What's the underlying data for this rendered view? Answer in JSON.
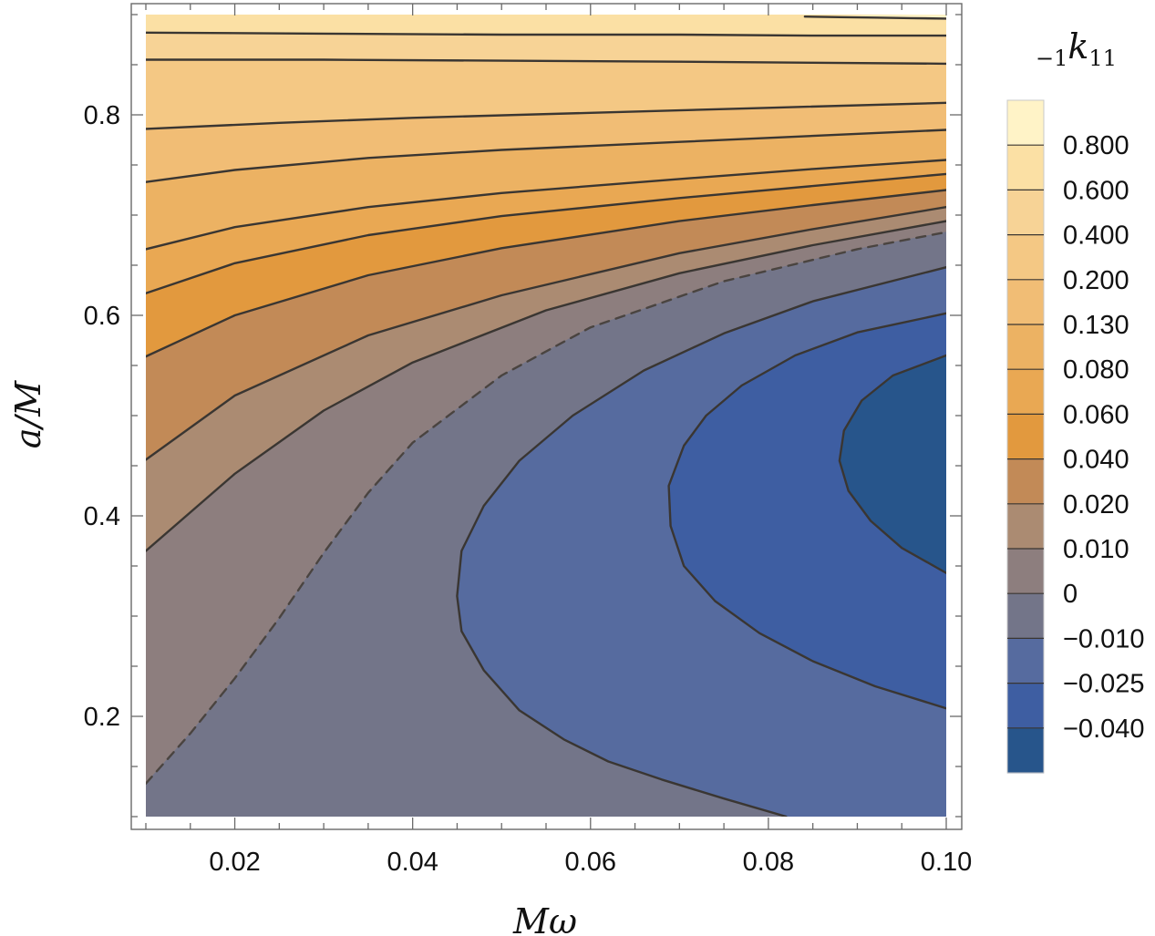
{
  "chart_data": {
    "type": "contour",
    "xlabel": "Mω",
    "ylabel": "a/M",
    "xlim": [
      0.01,
      0.1
    ],
    "ylim": [
      0.1,
      0.9
    ],
    "x_ticks": [
      {
        "value": 0.02,
        "label": "0.02"
      },
      {
        "value": 0.04,
        "label": "0.04"
      },
      {
        "value": 0.06,
        "label": "0.06"
      },
      {
        "value": 0.08,
        "label": "0.08"
      },
      {
        "value": 0.1,
        "label": "0.10"
      }
    ],
    "y_ticks": [
      {
        "value": 0.2,
        "label": "0.2"
      },
      {
        "value": 0.4,
        "label": "0.4"
      },
      {
        "value": 0.6,
        "label": "0.6"
      },
      {
        "value": 0.8,
        "label": "0.8"
      }
    ],
    "legend": {
      "title_prefix": "−1",
      "title_symbol": "k",
      "title_suffix": "11",
      "placement": "right",
      "levels": [
        "0.800",
        "0.600",
        "0.400",
        "0.200",
        "0.130",
        "0.080",
        "0.060",
        "0.040",
        "0.020",
        "0.010",
        "0",
        "−0.010",
        "−0.025",
        "−0.040"
      ],
      "band_colors": [
        "#fff3c7",
        "#fbe0a4",
        "#f7d396",
        "#f4c884",
        "#f1bd75",
        "#ecb263",
        "#e9a853",
        "#e2993e",
        "#c28a57",
        "#ab8b72",
        "#8d7e7e",
        "#737589",
        "#566b9f",
        "#3e5ea2",
        "#27558b"
      ]
    },
    "contours": [
      {
        "level": "0.800",
        "dashed": false,
        "points": [
          [
            0.0841,
            0.898
          ],
          [
            0.088,
            0.8975
          ],
          [
            0.092,
            0.897
          ],
          [
            0.096,
            0.8965
          ],
          [
            0.1,
            0.896
          ]
        ]
      },
      {
        "level": "0.600",
        "dashed": false,
        "points": [
          [
            0.01,
            0.882
          ],
          [
            0.03,
            0.881
          ],
          [
            0.05,
            0.88
          ],
          [
            0.07,
            0.88
          ],
          [
            0.085,
            0.879
          ],
          [
            0.1,
            0.879
          ]
        ]
      },
      {
        "level": "0.400",
        "dashed": false,
        "points": [
          [
            0.01,
            0.855
          ],
          [
            0.03,
            0.855
          ],
          [
            0.05,
            0.854
          ],
          [
            0.07,
            0.853
          ],
          [
            0.085,
            0.852
          ],
          [
            0.1,
            0.851
          ]
        ]
      },
      {
        "level": "0.200",
        "dashed": false,
        "points": [
          [
            0.01,
            0.786
          ],
          [
            0.025,
            0.792
          ],
          [
            0.04,
            0.797
          ],
          [
            0.06,
            0.802
          ],
          [
            0.08,
            0.807
          ],
          [
            0.1,
            0.812
          ]
        ]
      },
      {
        "level": "0.130",
        "dashed": false,
        "points": [
          [
            0.01,
            0.733
          ],
          [
            0.02,
            0.745
          ],
          [
            0.035,
            0.757
          ],
          [
            0.05,
            0.765
          ],
          [
            0.07,
            0.773
          ],
          [
            0.085,
            0.779
          ],
          [
            0.1,
            0.785
          ]
        ]
      },
      {
        "level": "0.080",
        "dashed": false,
        "points": [
          [
            0.01,
            0.666
          ],
          [
            0.02,
            0.688
          ],
          [
            0.035,
            0.708
          ],
          [
            0.05,
            0.722
          ],
          [
            0.07,
            0.736
          ],
          [
            0.085,
            0.746
          ],
          [
            0.1,
            0.755
          ]
        ]
      },
      {
        "level": "0.060",
        "dashed": false,
        "points": [
          [
            0.01,
            0.622
          ],
          [
            0.02,
            0.652
          ],
          [
            0.035,
            0.68
          ],
          [
            0.05,
            0.699
          ],
          [
            0.07,
            0.717
          ],
          [
            0.085,
            0.729
          ],
          [
            0.1,
            0.741
          ]
        ]
      },
      {
        "level": "0.040",
        "dashed": false,
        "points": [
          [
            0.01,
            0.559
          ],
          [
            0.02,
            0.6
          ],
          [
            0.035,
            0.64
          ],
          [
            0.05,
            0.667
          ],
          [
            0.07,
            0.694
          ],
          [
            0.085,
            0.71
          ],
          [
            0.1,
            0.725
          ]
        ]
      },
      {
        "level": "0.020",
        "dashed": false,
        "points": [
          [
            0.01,
            0.456
          ],
          [
            0.02,
            0.52
          ],
          [
            0.035,
            0.58
          ],
          [
            0.05,
            0.62
          ],
          [
            0.07,
            0.662
          ],
          [
            0.085,
            0.686
          ],
          [
            0.1,
            0.708
          ]
        ]
      },
      {
        "level": "0.010",
        "dashed": false,
        "points": [
          [
            0.01,
            0.365
          ],
          [
            0.02,
            0.442
          ],
          [
            0.03,
            0.505
          ],
          [
            0.04,
            0.553
          ],
          [
            0.055,
            0.605
          ],
          [
            0.07,
            0.642
          ],
          [
            0.085,
            0.67
          ],
          [
            0.1,
            0.694
          ]
        ]
      },
      {
        "level": "0",
        "dashed": true,
        "points": [
          [
            0.01,
            0.133
          ],
          [
            0.015,
            0.183
          ],
          [
            0.02,
            0.238
          ],
          [
            0.025,
            0.298
          ],
          [
            0.03,
            0.363
          ],
          [
            0.035,
            0.423
          ],
          [
            0.04,
            0.473
          ],
          [
            0.05,
            0.54
          ],
          [
            0.06,
            0.588
          ],
          [
            0.075,
            0.634
          ],
          [
            0.09,
            0.666
          ],
          [
            0.1,
            0.683
          ]
        ]
      },
      {
        "level": "−0.010",
        "dashed": false,
        "points": [
          [
            0.082,
            0.1
          ],
          [
            0.075,
            0.118
          ],
          [
            0.068,
            0.137
          ],
          [
            0.062,
            0.155
          ],
          [
            0.057,
            0.177
          ],
          [
            0.052,
            0.206
          ],
          [
            0.048,
            0.246
          ],
          [
            0.0455,
            0.285
          ],
          [
            0.045,
            0.32
          ],
          [
            0.0455,
            0.365
          ],
          [
            0.048,
            0.41
          ],
          [
            0.052,
            0.455
          ],
          [
            0.058,
            0.5
          ],
          [
            0.066,
            0.545
          ],
          [
            0.075,
            0.582
          ],
          [
            0.085,
            0.614
          ],
          [
            0.1,
            0.648
          ]
        ]
      },
      {
        "level": "−0.025",
        "dashed": false,
        "points": [
          [
            0.1,
            0.208
          ],
          [
            0.092,
            0.23
          ],
          [
            0.085,
            0.255
          ],
          [
            0.079,
            0.283
          ],
          [
            0.074,
            0.315
          ],
          [
            0.0705,
            0.35
          ],
          [
            0.069,
            0.39
          ],
          [
            0.0688,
            0.43
          ],
          [
            0.0705,
            0.47
          ],
          [
            0.073,
            0.5
          ],
          [
            0.077,
            0.53
          ],
          [
            0.083,
            0.56
          ],
          [
            0.09,
            0.583
          ],
          [
            0.1,
            0.602
          ]
        ]
      },
      {
        "level": "−0.040",
        "dashed": false,
        "points": [
          [
            0.1,
            0.343
          ],
          [
            0.095,
            0.368
          ],
          [
            0.0915,
            0.395
          ],
          [
            0.089,
            0.425
          ],
          [
            0.088,
            0.455
          ],
          [
            0.0885,
            0.485
          ],
          [
            0.0905,
            0.515
          ],
          [
            0.094,
            0.54
          ],
          [
            0.1,
            0.56
          ]
        ]
      }
    ]
  }
}
